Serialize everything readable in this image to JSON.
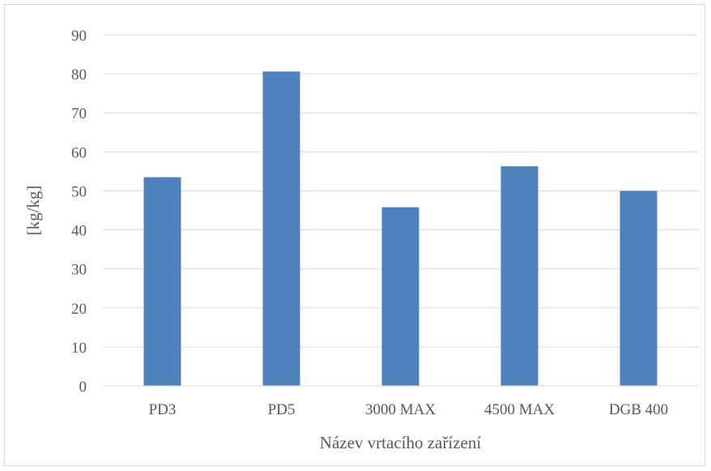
{
  "chart_data": {
    "type": "bar",
    "title": "",
    "xlabel": "Název vrtacího zařízení",
    "ylabel": "[kg/kg]",
    "categories": [
      "PD3",
      "PD5",
      "3000 MAX",
      "4500 MAX",
      "DGB 400"
    ],
    "values": [
      53.5,
      80.6,
      45.8,
      56.3,
      50.0
    ],
    "ylim": [
      0,
      90
    ],
    "yticks": [
      0,
      10,
      20,
      30,
      40,
      50,
      60,
      70,
      80,
      90
    ],
    "grid": true,
    "legend": "none",
    "bar_color": "#4f81bd",
    "grid_color": "#d9d9d9"
  }
}
